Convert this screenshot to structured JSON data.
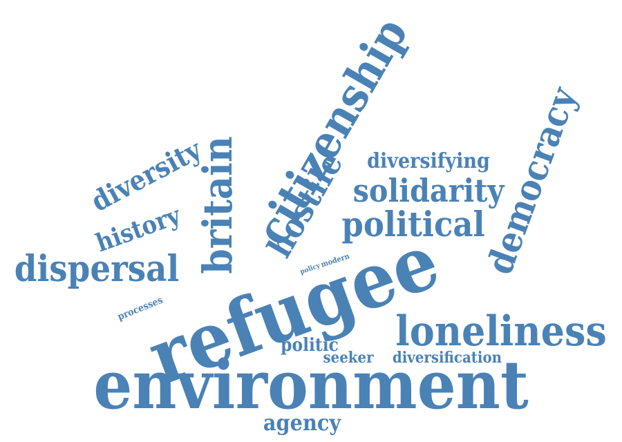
{
  "word_cloud": {
    "color": "#4a82b6",
    "background": "#ffffff",
    "words": {
      "environment": "environment",
      "refugee": "refugee",
      "loneliness": "loneliness",
      "citizenship": "citizenship",
      "britain": "britain",
      "democracy": "democracy",
      "dispersal": "dispersal",
      "political": "political",
      "solidarity": "solidarity",
      "hostile": "hostile",
      "diversity": "diversity",
      "history": "history",
      "diversifying": "diversifying",
      "politic": "politic",
      "seeker": "seeker",
      "diversification": "diversification",
      "agency": "agency",
      "processes": "processes",
      "modern": "modern",
      "policy": "policy"
    }
  }
}
